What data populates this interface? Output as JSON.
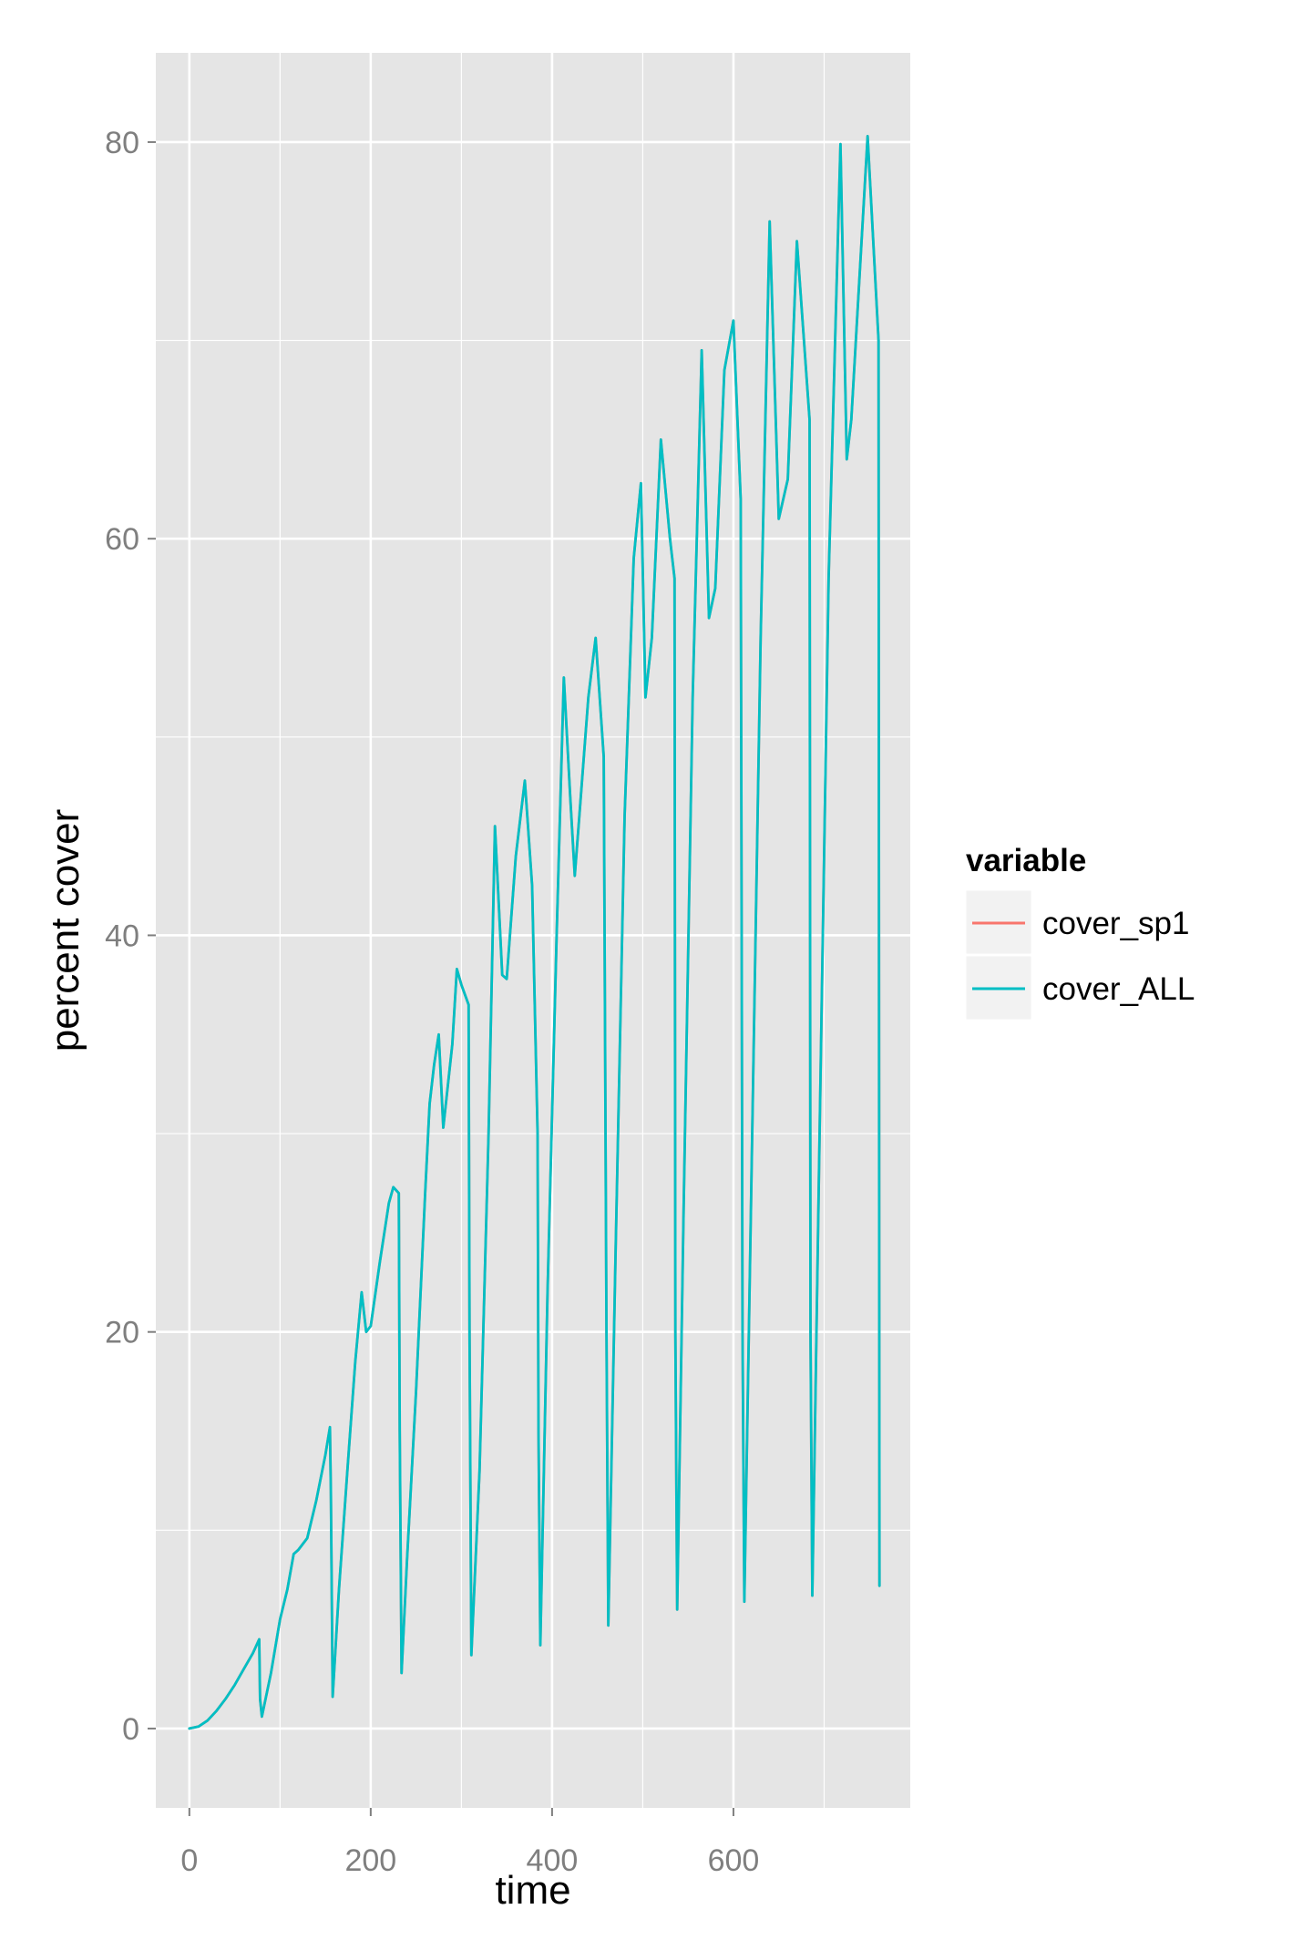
{
  "chart_data": {
    "type": "line",
    "xlabel": "time",
    "ylabel": "percent cover",
    "xlim": [
      -37,
      795
    ],
    "ylim": [
      -4,
      84.5
    ],
    "x_ticks": [
      0,
      200,
      400,
      600
    ],
    "x_minor_ticks": [
      100,
      300,
      500,
      700
    ],
    "y_ticks": [
      0,
      20,
      40,
      60,
      80
    ],
    "y_minor_ticks": [
      10,
      30,
      50,
      70
    ],
    "grid": true,
    "panel_background": "#e5e5e5",
    "grid_color": "#ffffff",
    "legend": {
      "title": "variable",
      "position": "right",
      "entries": [
        {
          "label": "cover_sp1",
          "color": "#F8766D"
        },
        {
          "label": "cover_ALL",
          "color": "#00BFC4"
        }
      ]
    },
    "series": [
      {
        "name": "cover_sp1",
        "color": "#F8766D",
        "x": [
          0,
          10,
          20,
          30,
          40,
          50,
          60,
          70,
          77,
          78,
          80,
          90,
          100,
          108,
          115,
          120,
          130,
          140,
          150,
          155,
          156,
          158,
          165,
          175,
          183,
          190,
          195,
          200,
          210,
          220,
          225,
          231,
          232,
          234,
          240,
          250,
          260,
          265,
          270,
          275,
          280,
          290,
          295,
          300,
          308,
          309,
          311,
          320,
          330,
          337,
          345,
          350,
          360,
          370,
          378,
          384,
          385,
          387,
          395,
          405,
          413,
          420,
          425,
          430,
          440,
          448,
          457,
          460,
          462,
          470,
          480,
          490,
          498,
          503,
          510,
          520,
          530,
          535,
          536,
          538,
          545,
          555,
          565,
          573,
          580,
          590,
          600,
          608,
          610,
          612,
          620,
          630,
          640,
          650,
          660,
          670,
          684,
          685,
          687,
          695,
          705,
          718,
          725,
          730,
          740,
          748,
          760,
          761
        ],
        "y": [
          0,
          0.1,
          0.4,
          0.9,
          1.5,
          2.2,
          3.0,
          3.8,
          4.5,
          1.5,
          0.6,
          2.8,
          5.5,
          7.0,
          8.8,
          9.0,
          9.6,
          11.5,
          13.8,
          15.2,
          12.0,
          1.6,
          7.0,
          13.5,
          18.5,
          22.0,
          20.0,
          20.3,
          23.5,
          26.5,
          27.3,
          27.0,
          15.0,
          2.8,
          8.5,
          17.0,
          27.0,
          31.5,
          33.5,
          35.0,
          30.3,
          34.5,
          38.3,
          37.5,
          36.5,
          20.0,
          3.7,
          13.0,
          30.0,
          45.5,
          38.0,
          37.8,
          44.0,
          47.8,
          42.5,
          30.0,
          15.0,
          4.2,
          22.0,
          40.0,
          53.0,
          47.0,
          43.0,
          46.0,
          52.0,
          55.0,
          49.0,
          20.0,
          5.2,
          24.0,
          46.0,
          59.0,
          62.8,
          52.0,
          55.0,
          65.0,
          60.0,
          58.0,
          20.0,
          6.0,
          26.0,
          52.0,
          69.5,
          56.0,
          57.5,
          68.5,
          71.0,
          62.0,
          20.0,
          6.4,
          28.0,
          55.0,
          76.0,
          61.0,
          63.0,
          75.0,
          66.0,
          20.0,
          6.7,
          30.0,
          58.0,
          79.9,
          64.0,
          66.0,
          74.0,
          80.3,
          70.0,
          7.2
        ]
      },
      {
        "name": "cover_ALL",
        "color": "#00BFC4",
        "x": [
          0,
          10,
          20,
          30,
          40,
          50,
          60,
          70,
          77,
          78,
          80,
          90,
          100,
          108,
          115,
          120,
          130,
          140,
          150,
          155,
          156,
          158,
          165,
          175,
          183,
          190,
          195,
          200,
          210,
          220,
          225,
          231,
          232,
          234,
          240,
          250,
          260,
          265,
          270,
          275,
          280,
          290,
          295,
          300,
          308,
          309,
          311,
          320,
          330,
          337,
          345,
          350,
          360,
          370,
          378,
          384,
          385,
          387,
          395,
          405,
          413,
          420,
          425,
          430,
          440,
          448,
          457,
          460,
          462,
          470,
          480,
          490,
          498,
          503,
          510,
          520,
          530,
          535,
          536,
          538,
          545,
          555,
          565,
          573,
          580,
          590,
          600,
          608,
          610,
          612,
          620,
          630,
          640,
          650,
          660,
          670,
          684,
          685,
          687,
          695,
          705,
          718,
          725,
          730,
          740,
          748,
          760,
          761
        ],
        "y": [
          0,
          0.1,
          0.4,
          0.9,
          1.5,
          2.2,
          3.0,
          3.8,
          4.5,
          1.5,
          0.6,
          2.8,
          5.5,
          7.0,
          8.8,
          9.0,
          9.6,
          11.5,
          13.8,
          15.2,
          12.0,
          1.6,
          7.0,
          13.5,
          18.5,
          22.0,
          20.0,
          20.3,
          23.5,
          26.5,
          27.3,
          27.0,
          15.0,
          2.8,
          8.5,
          17.0,
          27.0,
          31.5,
          33.5,
          35.0,
          30.3,
          34.5,
          38.3,
          37.5,
          36.5,
          20.0,
          3.7,
          13.0,
          30.0,
          45.5,
          38.0,
          37.8,
          44.0,
          47.8,
          42.5,
          30.0,
          15.0,
          4.2,
          22.0,
          40.0,
          53.0,
          47.0,
          43.0,
          46.0,
          52.0,
          55.0,
          49.0,
          20.0,
          5.2,
          24.0,
          46.0,
          59.0,
          62.8,
          52.0,
          55.0,
          65.0,
          60.0,
          58.0,
          20.0,
          6.0,
          26.0,
          52.0,
          69.5,
          56.0,
          57.5,
          68.5,
          71.0,
          62.0,
          20.0,
          6.4,
          28.0,
          55.0,
          76.0,
          61.0,
          63.0,
          75.0,
          66.0,
          20.0,
          6.7,
          30.0,
          58.0,
          79.9,
          64.0,
          66.0,
          74.0,
          80.3,
          70.0,
          7.2
        ]
      }
    ]
  }
}
